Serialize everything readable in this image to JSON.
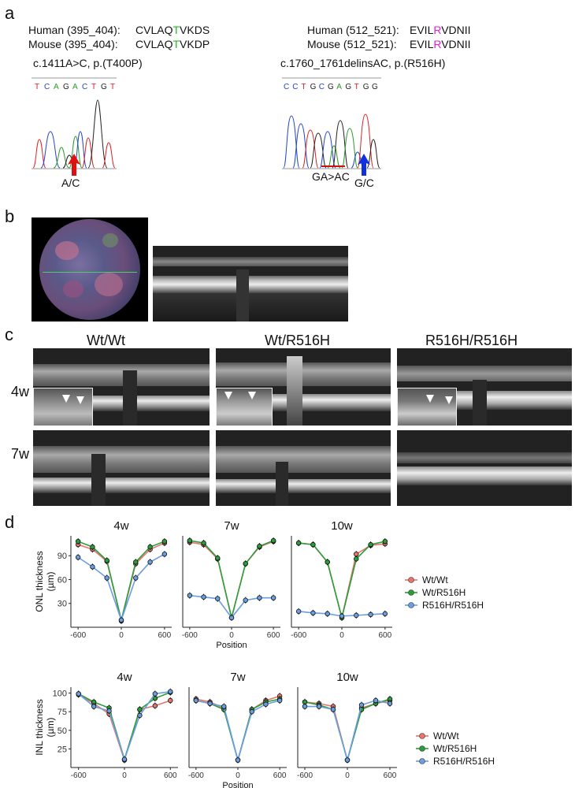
{
  "panel_labels": {
    "a": "a",
    "b": "b",
    "c": "c",
    "d": "d"
  },
  "panel_a": {
    "left": {
      "human_label": "Human (395_404):",
      "human_seq_pre": "CVLAQ",
      "human_seq_mut": "T",
      "human_seq_post": "VKDS",
      "mouse_label": "Mouse (395_404):",
      "mouse_seq_pre": "CVLAQ",
      "mouse_seq_mut": "T",
      "mouse_seq_post": "VKDP",
      "mutation": "c.1411A>C, p.(T400P)",
      "bases": [
        "T",
        "C",
        "A",
        "G",
        "A",
        "C",
        "T",
        "G",
        "T"
      ],
      "arrow_label": "A/C",
      "mut_color": "#22bb22"
    },
    "right": {
      "human_label": "Human (512_521):",
      "human_seq_pre": "EVIL",
      "human_seq_mut": "R",
      "human_seq_post": "VDNII",
      "mouse_label": "Mouse (512_521):",
      "mouse_seq_pre": "EVIL",
      "mouse_seq_mut": "R",
      "mouse_seq_post": "VDNII",
      "mutation": "c.1760_1761delinsAC, p.(R516H)",
      "bases": [
        "C",
        "C",
        "T",
        "G",
        "C",
        "G",
        "A",
        "G",
        "T",
        "G",
        "G"
      ],
      "del_label": "GA>AC",
      "arrow_label": "G/C",
      "mut_color": "#e020e0"
    },
    "base_colors": {
      "A": "#2a9a2a",
      "C": "#2244cc",
      "G": "#222222",
      "T": "#dd2222"
    }
  },
  "panel_c": {
    "genotypes": [
      "Wt/Wt",
      "Wt/R516H",
      "R516H/R516H"
    ],
    "weeks": [
      "4w",
      "7w"
    ]
  },
  "panel_d": {
    "colors": {
      "Wt/Wt": "#e8736c",
      "Wt/R516H": "#2a9d3a",
      "R516H/R516H": "#6a9ee0"
    },
    "legend": [
      "Wt/Wt",
      "Wt/R516H",
      "R516H/R516H"
    ],
    "x_title": "Position"
  },
  "chart_data": [
    {
      "type": "line",
      "title": "4w",
      "ylabel": "ONL thickness (µm)",
      "xlabel": "",
      "x": [
        -600,
        -400,
        -200,
        0,
        200,
        400,
        600
      ],
      "xticks": [
        -600,
        0,
        600
      ],
      "yticks": [
        30,
        60,
        90
      ],
      "ylim": [
        0,
        115
      ],
      "series": [
        {
          "name": "Wt/Wt",
          "values": [
            104,
            98,
            83,
            8,
            80,
            98,
            106
          ]
        },
        {
          "name": "Wt/R516H",
          "values": [
            108,
            101,
            84,
            9,
            82,
            101,
            108
          ]
        },
        {
          "name": "R516H/R516H",
          "values": [
            88,
            76,
            62,
            9,
            62,
            82,
            92
          ]
        }
      ]
    },
    {
      "type": "line",
      "title": "7w",
      "ylabel": "ONL thickness (µm)",
      "xlabel": "Position",
      "x": [
        -600,
        -400,
        -200,
        0,
        200,
        400,
        600
      ],
      "xticks": [
        -600,
        0,
        600
      ],
      "yticks": [
        30,
        60,
        90
      ],
      "ylim": [
        0,
        115
      ],
      "series": [
        {
          "name": "Wt/Wt",
          "values": [
            107,
            104,
            86,
            12,
            80,
            101,
            108
          ]
        },
        {
          "name": "Wt/R516H",
          "values": [
            109,
            106,
            87,
            12,
            80,
            102,
            109
          ]
        },
        {
          "name": "R516H/R516H",
          "values": [
            40,
            38,
            36,
            12,
            34,
            37,
            37
          ]
        }
      ]
    },
    {
      "type": "line",
      "title": "10w",
      "ylabel": "ONL thickness (µm)",
      "xlabel": "",
      "x": [
        -600,
        -400,
        -200,
        0,
        200,
        400,
        600
      ],
      "xticks": [
        -600,
        0,
        600
      ],
      "yticks": [
        30,
        60,
        90
      ],
      "ylim": [
        0,
        115
      ],
      "series": [
        {
          "name": "Wt/Wt",
          "values": [
            106,
            104,
            82,
            12,
            92,
            103,
            105
          ]
        },
        {
          "name": "Wt/R516H",
          "values": [
            106,
            104,
            82,
            12,
            86,
            104,
            108
          ]
        },
        {
          "name": "R516H/R516H",
          "values": [
            20,
            18,
            17,
            14,
            15,
            16,
            17
          ]
        }
      ]
    },
    {
      "type": "line",
      "title": "4w",
      "ylabel": "INL thickness (µm)",
      "xlabel": "",
      "x": [
        -600,
        -400,
        -200,
        0,
        200,
        400,
        600
      ],
      "xticks": [
        -600,
        0,
        600
      ],
      "yticks": [
        25,
        50,
        75,
        100
      ],
      "ylim": [
        0,
        108
      ],
      "series": [
        {
          "name": "Wt/Wt",
          "values": [
            98,
            86,
            72,
            10,
            78,
            83,
            90
          ]
        },
        {
          "name": "Wt/R516H",
          "values": [
            99,
            88,
            80,
            11,
            78,
            93,
            101
          ]
        },
        {
          "name": "R516H/R516H",
          "values": [
            99,
            82,
            76,
            11,
            70,
            99,
            102
          ]
        }
      ]
    },
    {
      "type": "line",
      "title": "7w",
      "ylabel": "INL thickness (µm)",
      "xlabel": "Position",
      "x": [
        -600,
        -400,
        -200,
        0,
        200,
        400,
        600
      ],
      "xticks": [
        -600,
        0,
        600
      ],
      "yticks": [
        25,
        50,
        75,
        100
      ],
      "ylim": [
        0,
        108
      ],
      "series": [
        {
          "name": "Wt/Wt",
          "values": [
            92,
            88,
            80,
            10,
            78,
            90,
            96
          ]
        },
        {
          "name": "Wt/R516H",
          "values": [
            90,
            86,
            78,
            10,
            78,
            88,
            92
          ]
        },
        {
          "name": "R516H/R516H",
          "values": [
            90,
            86,
            82,
            10,
            75,
            85,
            90
          ]
        }
      ]
    },
    {
      "type": "line",
      "title": "10w",
      "ylabel": "INL thickness (µm)",
      "xlabel": "",
      "x": [
        -600,
        -400,
        -200,
        0,
        200,
        400,
        600
      ],
      "xticks": [
        -600,
        0,
        600
      ],
      "yticks": [
        25,
        50,
        75,
        100
      ],
      "ylim": [
        0,
        108
      ],
      "series": [
        {
          "name": "Wt/Wt",
          "values": [
            88,
            86,
            82,
            10,
            80,
            86,
            90
          ]
        },
        {
          "name": "Wt/R516H",
          "values": [
            88,
            84,
            78,
            10,
            78,
            86,
            92
          ]
        },
        {
          "name": "R516H/R516H",
          "values": [
            82,
            82,
            78,
            10,
            84,
            90,
            86
          ]
        }
      ]
    }
  ]
}
